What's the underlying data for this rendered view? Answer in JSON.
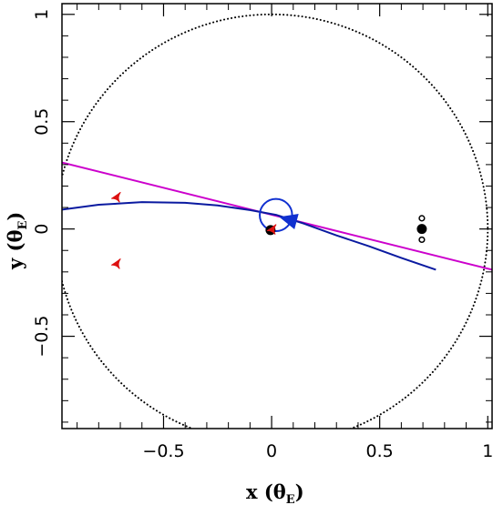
{
  "chart_data": {
    "type": "scatter",
    "xlabel_main": "x",
    "xlabel_theta": "θ",
    "xlabel_sub": "E",
    "ylabel_main": "y",
    "ylabel_theta": "θ",
    "ylabel_sub": "E",
    "xlim": [
      -0.97,
      1.02
    ],
    "ylim": [
      -0.93,
      1.05
    ],
    "xticks": [
      {
        "value": -0.5,
        "label": "−0.5"
      },
      {
        "value": 0,
        "label": "0"
      },
      {
        "value": 0.5,
        "label": "0.5"
      },
      {
        "value": 1,
        "label": "1"
      }
    ],
    "yticks": [
      {
        "value": -0.5,
        "label": "−0.5"
      },
      {
        "value": 0,
        "label": "0"
      },
      {
        "value": 0.5,
        "label": "0.5"
      },
      {
        "value": 1,
        "label": "1"
      }
    ],
    "einstein_ring": {
      "cx": 0,
      "cy": 0,
      "r": 1,
      "color": "#000000"
    },
    "source_trajectory": {
      "color": "#cc00cc",
      "points": [
        [
          -0.97,
          0.31
        ],
        [
          1.02,
          -0.19
        ]
      ]
    },
    "planetary_trajectory": {
      "color": "#0a1aa0",
      "points": [
        [
          -0.97,
          0.09
        ],
        [
          -0.8,
          0.113
        ],
        [
          -0.6,
          0.125
        ],
        [
          -0.4,
          0.122
        ],
        [
          -0.25,
          0.11
        ],
        [
          -0.1,
          0.088
        ],
        [
          0.02,
          0.066
        ],
        [
          0.15,
          0.025
        ],
        [
          0.3,
          -0.03
        ],
        [
          0.45,
          -0.08
        ],
        [
          0.6,
          -0.135
        ],
        [
          0.76,
          -0.19
        ]
      ]
    },
    "source_circle": {
      "cx": 0.02,
      "cy": 0.065,
      "r": 0.075,
      "color": "#1030d0"
    },
    "arrow": {
      "tip": [
        0.04,
        0.055
      ],
      "direction": [
        1,
        -0.27
      ],
      "color": "#1030d0"
    },
    "caustics": {
      "color": "#dd1111",
      "points": [
        [
          -0.72,
          0.15
        ],
        [
          -0.72,
          -0.16
        ],
        [
          0.0,
          0.0
        ]
      ]
    },
    "lenses": [
      {
        "x": 0.695,
        "y": 0.0,
        "r": 0.02,
        "filled": true
      },
      {
        "x": 0.695,
        "y": 0.05,
        "r": 0.012,
        "filled": false
      },
      {
        "x": 0.695,
        "y": -0.05,
        "r": 0.012,
        "filled": false
      },
      {
        "x": -0.005,
        "y": -0.005,
        "r": 0.02,
        "filled": true
      }
    ]
  }
}
